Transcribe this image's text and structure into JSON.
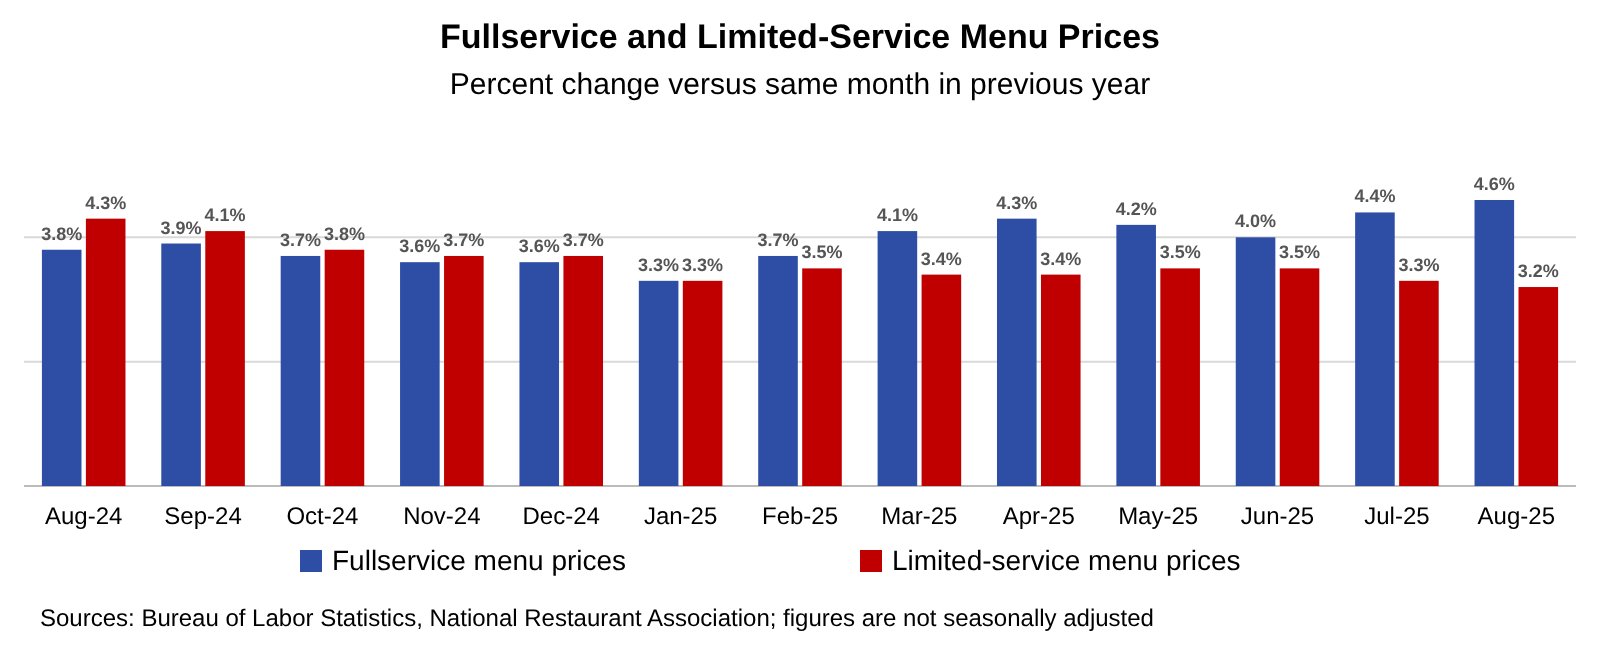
{
  "chart_data": {
    "type": "bar",
    "title": "Fullservice and Limited-Service Menu Prices",
    "subtitle": "Percent change versus same month in previous year",
    "categories": [
      "Aug-24",
      "Sep-24",
      "Oct-24",
      "Nov-24",
      "Dec-24",
      "Jan-25",
      "Feb-25",
      "Mar-25",
      "Apr-25",
      "May-25",
      "Jun-25",
      "Jul-25",
      "Aug-25"
    ],
    "series": [
      {
        "name": "Fullservice menu prices",
        "color": "#2e4ea6",
        "values": [
          3.8,
          3.9,
          3.7,
          3.6,
          3.6,
          3.3,
          3.7,
          4.1,
          4.3,
          4.2,
          4.0,
          4.4,
          4.6
        ],
        "value_labels": [
          "3.8%",
          "3.9%",
          "3.7%",
          "3.6%",
          "3.6%",
          "3.3%",
          "3.7%",
          "4.1%",
          "4.3%",
          "4.2%",
          "4.0%",
          "4.4%",
          "4.6%"
        ]
      },
      {
        "name": "Limited-service menu prices",
        "color": "#c00000",
        "values": [
          4.3,
          4.1,
          3.8,
          3.7,
          3.7,
          3.3,
          3.5,
          3.4,
          3.4,
          3.5,
          3.5,
          3.3,
          3.2
        ],
        "value_labels": [
          "4.3%",
          "4.1%",
          "3.8%",
          "3.7%",
          "3.7%",
          "3.3%",
          "3.5%",
          "3.4%",
          "3.4%",
          "3.5%",
          "3.5%",
          "3.3%",
          "3.2%"
        ]
      }
    ],
    "ref_lines": [
      {
        "axis": "y",
        "value": 2,
        "color": "#d9d9d9"
      },
      {
        "axis": "y",
        "value": 4,
        "color": "#d9d9d9"
      }
    ],
    "legend": "bottom",
    "annotations": [
      "Sources: Bureau of Labor Statistics, National Restaurant Association; figures are not seasonally adjusted"
    ]
  }
}
